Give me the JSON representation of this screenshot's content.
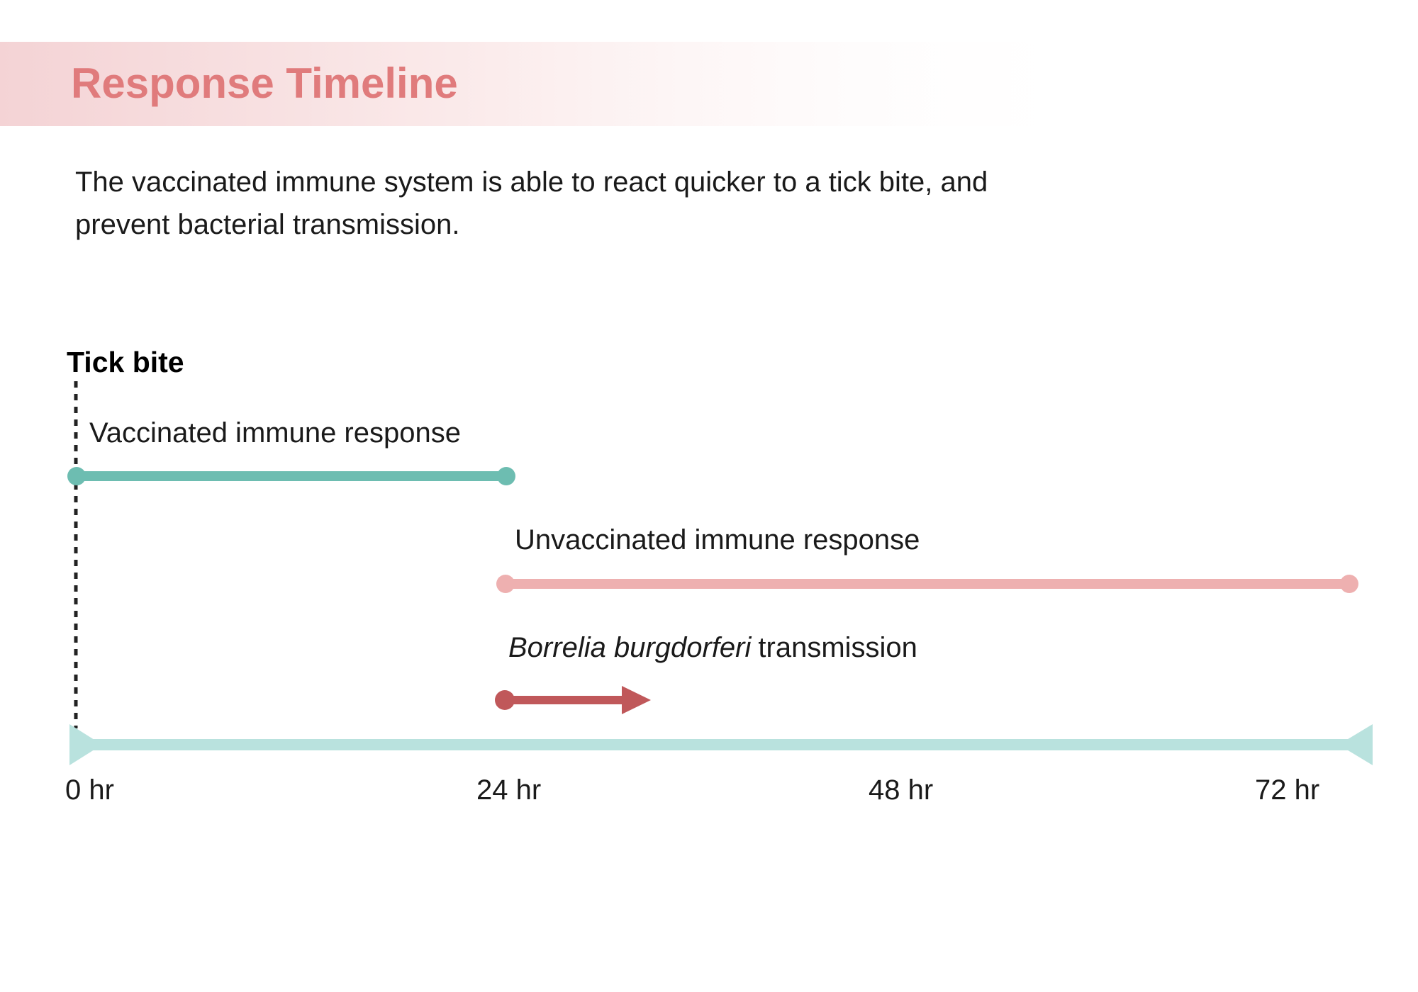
{
  "header": {
    "title": "Response Timeline"
  },
  "description": [
    "The vaccinated immune system is able to react quicker to a tick bite, and",
    "prevent bacterial transmission."
  ],
  "timeline": {
    "marker": "Tick bite",
    "vaccinated": "Vaccinated immune response",
    "unvaccinated": "Unvaccinated immune response",
    "transmission": {
      "organism": "Borrelia burgdorferi",
      "label": "transmission"
    },
    "ticks": [
      "0 hr",
      "24 hr",
      "48 hr",
      "72 hr"
    ]
  }
}
